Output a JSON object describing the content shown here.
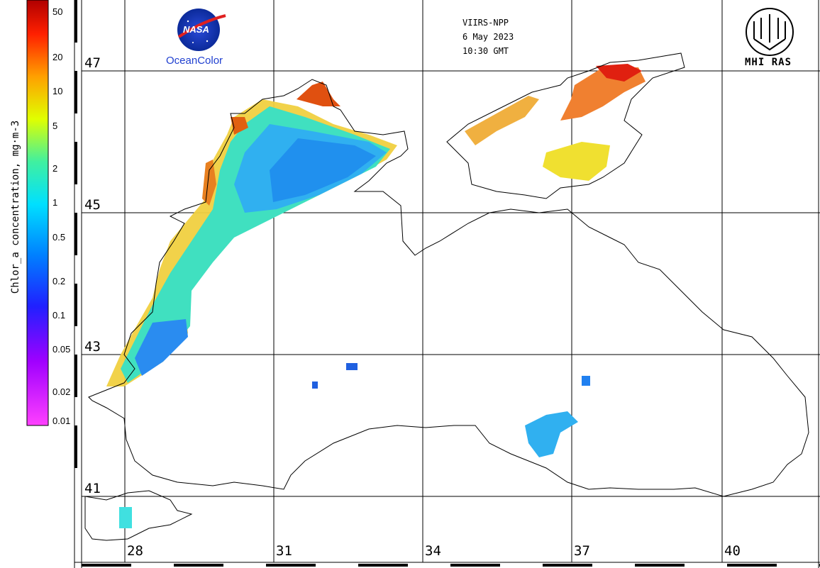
{
  "colorbar": {
    "title": "Chlor_a concentration, mg·m-3",
    "ticks": [
      "50",
      "20",
      "10",
      "5",
      "2",
      "1",
      "0.5",
      "0.2",
      "0.1",
      "0.05",
      "0.02",
      "0.01"
    ],
    "colors": [
      "#ff40ff",
      "#8000ff",
      "#2020ff",
      "#00c0ff",
      "#40ffd0",
      "#ffff00",
      "#ff8000",
      "#ff0000",
      "#a00000"
    ]
  },
  "header": {
    "sensor": "VIIRS-NPP",
    "date": "6 May 2023",
    "time": "10:30 GMT"
  },
  "logos": {
    "nasa_text": "NASA",
    "oceancolor": "OceanColor",
    "mhi": "MHI RAS"
  },
  "latitudes": [
    "47",
    "45",
    "43",
    "41"
  ],
  "longitudes": [
    "28",
    "31",
    "34",
    "37",
    "40"
  ],
  "icons": {
    "nasa_logo": "nasa-meatball-icon",
    "mhi_logo": "mhi-ras-emblem-icon"
  }
}
